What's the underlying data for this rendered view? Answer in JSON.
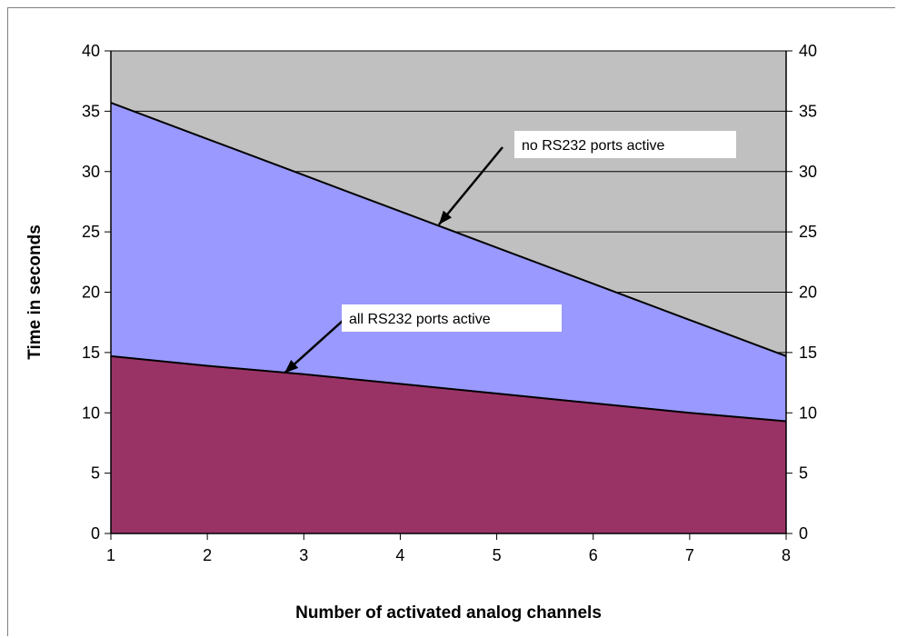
{
  "chart_data": {
    "type": "area",
    "xlabel": "Number of activated analog channels",
    "ylabel": "Time in seconds",
    "x": [
      1,
      2,
      3,
      4,
      5,
      6,
      7,
      8
    ],
    "xlim": [
      1,
      8
    ],
    "ylim": [
      0,
      40
    ],
    "yticks": [
      0,
      5,
      10,
      15,
      20,
      25,
      30,
      35,
      40
    ],
    "secondary_y_axis_ticks": [
      0,
      5,
      10,
      15,
      20,
      25,
      30,
      35,
      40
    ],
    "grid": "horizontal",
    "series": [
      {
        "values": [
          35.7,
          32.7,
          29.7,
          26.7,
          23.7,
          20.7,
          17.7,
          14.7
        ]
      },
      {
        "values": [
          14.7,
          13.9,
          13.2,
          12.4,
          11.6,
          10.8,
          10.0,
          9.3
        ]
      }
    ],
    "annotations": [
      {
        "text": "no RS232 ports active",
        "points_to_x": 4.4,
        "points_to_y": 25.6
      },
      {
        "text": "all RS232 ports active",
        "points_to_x": 2.8,
        "points_to_y": 13.3
      }
    ],
    "colors": {
      "background": "#c0c0c0",
      "upper_fill": "#9999ff",
      "lower_fill": "#993366",
      "line": "#000000",
      "gridline": "#000000"
    }
  }
}
